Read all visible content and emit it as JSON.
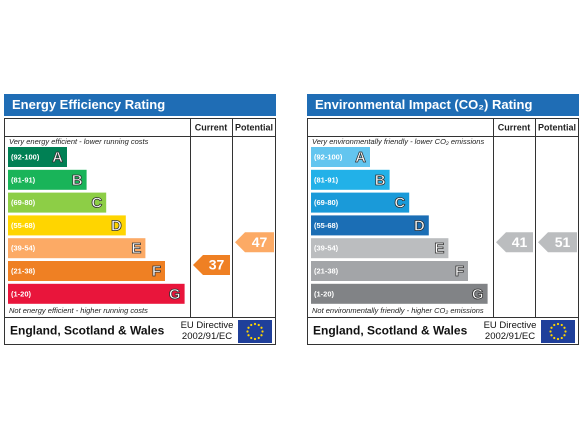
{
  "panels": [
    {
      "title": "Energy Efficiency Rating",
      "columns": [
        "Current",
        "Potential"
      ],
      "top_note": "Very energy efficient - lower running costs",
      "bottom_note": "Not energy efficient - higher running costs",
      "bands": [
        {
          "range": "(92-100)",
          "letter": "A",
          "color": "#008054"
        },
        {
          "range": "(81-91)",
          "letter": "B",
          "color": "#19b459"
        },
        {
          "range": "(69-80)",
          "letter": "C",
          "color": "#8dce46"
        },
        {
          "range": "(55-68)",
          "letter": "D",
          "color": "#ffd500"
        },
        {
          "range": "(39-54)",
          "letter": "E",
          "color": "#fcaa65"
        },
        {
          "range": "(21-38)",
          "letter": "F",
          "color": "#ef8023"
        },
        {
          "range": "(1-20)",
          "letter": "G",
          "color": "#e9153b"
        }
      ],
      "current": 37,
      "potential": 47,
      "footer": "England, Scotland & Wales",
      "directive": [
        "EU Directive",
        "2002/91/EC"
      ]
    },
    {
      "title": "Environmental Impact (CO₂) Rating",
      "columns": [
        "Current",
        "Potential"
      ],
      "top_note": "Very environmentally friendly - lower CO₂ emissions",
      "bottom_note": "Not environmentally friendly - higher CO₂ emissions",
      "bands": [
        {
          "range": "(92-100)",
          "letter": "A",
          "color": "#63c5ef"
        },
        {
          "range": "(81-91)",
          "letter": "B",
          "color": "#22b1e8"
        },
        {
          "range": "(69-80)",
          "letter": "C",
          "color": "#1a9ad9"
        },
        {
          "range": "(55-68)",
          "letter": "D",
          "color": "#1b6eb5"
        },
        {
          "range": "(39-54)",
          "letter": "E",
          "color": "#bbbdbf"
        },
        {
          "range": "(21-38)",
          "letter": "F",
          "color": "#a3a5a8"
        },
        {
          "range": "(1-20)",
          "letter": "G",
          "color": "#818386"
        }
      ],
      "current": 41,
      "potential": 51,
      "footer": "England, Scotland & Wales",
      "directive": [
        "EU Directive",
        "2002/91/EC"
      ]
    }
  ]
}
